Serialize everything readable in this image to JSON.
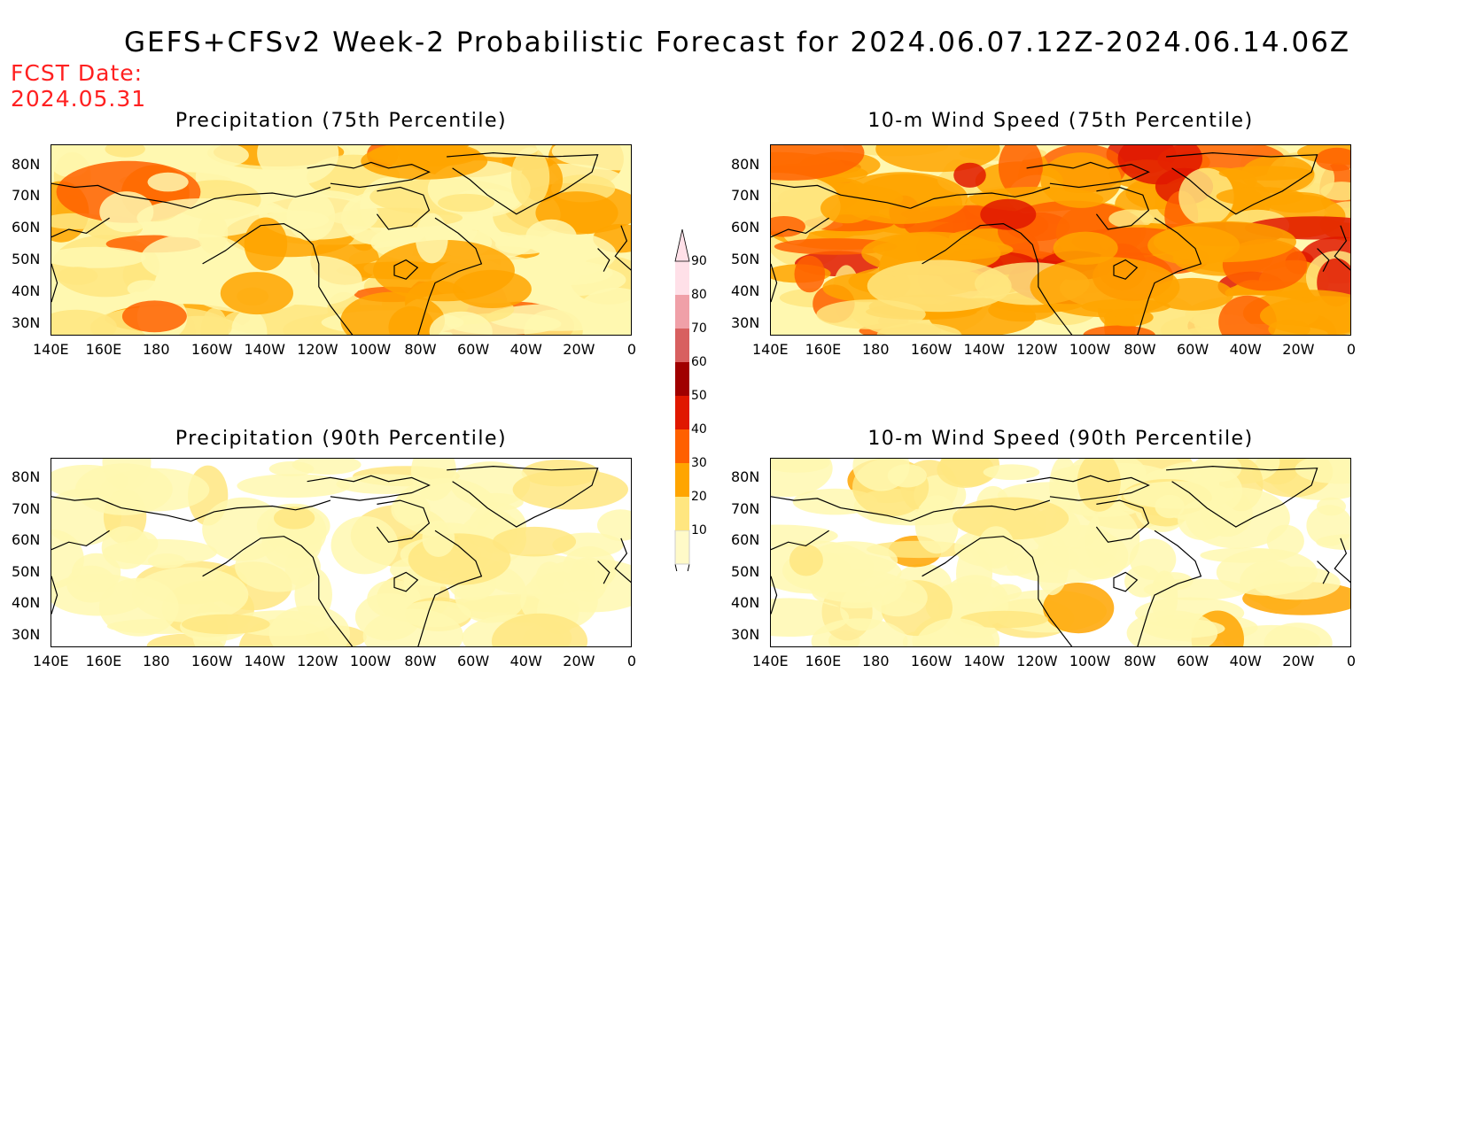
{
  "title": "GEFS+CFSv2 Week-2 Probabilistic Forecast for 2024.06.07.12Z-2024.06.14.06Z",
  "fcst_label": "FCST Date:",
  "fcst_date": "2024.05.31",
  "panels": [
    {
      "title": "Precipitation (75th Percentile)",
      "level": 3
    },
    {
      "title": "10-m Wind Speed (75th Percentile)",
      "level": 4
    },
    {
      "title": "Precipitation (90th Percentile)",
      "level": 1
    },
    {
      "title": "10-m Wind Speed (90th Percentile)",
      "level": 2
    }
  ],
  "lat_labels": [
    "80N",
    "70N",
    "60N",
    "50N",
    "40N",
    "30N"
  ],
  "lon_labels": [
    "140E",
    "160E",
    "180",
    "160W",
    "140W",
    "120W",
    "100W",
    "80W",
    "60W",
    "40W",
    "20W",
    "0"
  ],
  "colorbar": {
    "levels": [
      "90",
      "80",
      "70",
      "60",
      "50",
      "40",
      "30",
      "20",
      "10"
    ],
    "colors": [
      "#fffac8",
      "#ffe680",
      "#ffa500",
      "#ff6000",
      "#e01800",
      "#a00000",
      "#d86060",
      "#f0a0a8",
      "#ffe0e8"
    ]
  }
}
